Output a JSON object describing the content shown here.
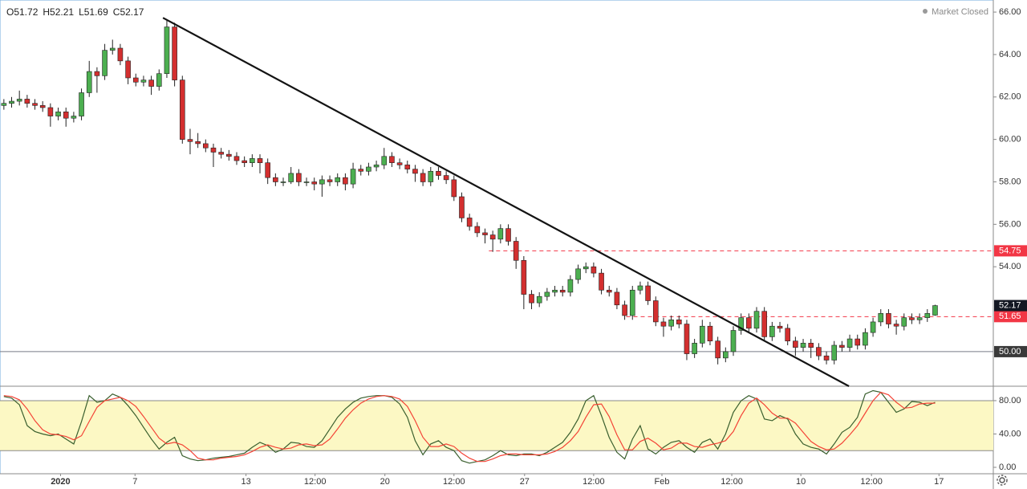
{
  "header": {
    "ohlc": [
      "O51.72",
      "H52.21",
      "L51.69",
      "C52.17"
    ],
    "status": "Market Closed"
  },
  "chart_data": {
    "type": "candlestick",
    "xlim": [
      -0.5,
      127.5
    ],
    "xticks": [
      {
        "value": 7.3,
        "label": "2020"
      },
      {
        "value": 16.9,
        "label": "7"
      },
      {
        "value": 31.2,
        "label": "13"
      },
      {
        "value": 40.1,
        "label": "12:00"
      },
      {
        "value": 49.1,
        "label": "20"
      },
      {
        "value": 58,
        "label": "12:00"
      },
      {
        "value": 67.1,
        "label": "27"
      },
      {
        "value": 76,
        "label": "12:00"
      },
      {
        "value": 84.8,
        "label": "Feb"
      },
      {
        "value": 93.8,
        "label": "12:00"
      },
      {
        "value": 102.7,
        "label": "10"
      },
      {
        "value": 111.8,
        "label": "12:00"
      },
      {
        "value": 120.5,
        "label": "17"
      }
    ],
    "ylim": [
      48.37,
      66.57
    ],
    "yticks": [
      {
        "value": 54,
        "label": "54.00"
      },
      {
        "value": 56,
        "label": "56.00"
      },
      {
        "value": 58,
        "label": "58.00"
      },
      {
        "value": 60,
        "label": "60.00"
      },
      {
        "value": 62,
        "label": "62.00"
      },
      {
        "value": 64,
        "label": "64.00"
      },
      {
        "value": 66,
        "label": "66.00"
      }
    ],
    "up_color": "#4caf50",
    "down_color": "#d32f2f",
    "open": [
      61.6,
      61.7,
      61.8,
      61.9,
      61.7,
      61.6,
      61.5,
      61.1,
      61.3,
      61.0,
      61.1,
      62.2,
      63.2,
      63.0,
      64.2,
      64.3,
      63.7,
      62.9,
      62.7,
      62.8,
      62.5,
      63.1,
      65.3,
      62.8,
      60.0,
      59.9,
      59.8,
      59.6,
      59.4,
      59.3,
      59.2,
      59.0,
      58.9,
      59.1,
      58.9,
      58.2,
      58.0,
      58.0,
      58.4,
      58.0,
      58.0,
      57.9,
      58.1,
      58.0,
      58.2,
      57.9,
      58.6,
      58.5,
      58.7,
      58.8,
      59.2,
      58.9,
      58.8,
      58.6,
      58.4,
      58.0,
      58.5,
      58.3,
      58.1,
      57.3,
      56.3,
      55.9,
      55.6,
      55.5,
      55.3,
      55.8,
      55.2,
      54.3,
      52.7,
      52.3,
      52.6,
      52.8,
      52.9,
      52.8,
      53.4,
      53.9,
      54.0,
      53.7,
      52.9,
      52.8,
      52.2,
      51.7,
      52.9,
      53.1,
      52.4,
      51.4,
      51.2,
      51.5,
      51.3,
      49.9,
      50.4,
      51.2,
      50.5,
      49.7,
      50.0,
      51.0,
      51.6,
      51.1,
      51.9,
      50.7,
      51.2,
      51.1,
      50.5,
      50.2,
      50.4,
      50.2,
      49.8,
      49.6,
      50.3,
      50.2,
      50.6,
      50.3,
      50.9,
      51.4,
      51.8,
      51.3,
      51.2,
      51.6,
      51.5,
      51.6,
      51.72
    ],
    "high": [
      61.9,
      62.0,
      62.3,
      62.1,
      61.9,
      61.8,
      61.7,
      61.5,
      61.5,
      61.3,
      62.4,
      63.7,
      63.4,
      64.5,
      64.7,
      64.5,
      63.9,
      63.1,
      63.0,
      63.0,
      63.3,
      65.6,
      65.5,
      63.0,
      60.5,
      60.3,
      60.0,
      59.8,
      59.6,
      59.5,
      59.4,
      59.2,
      59.3,
      59.3,
      59.1,
      58.4,
      58.2,
      58.7,
      58.6,
      58.2,
      58.2,
      58.3,
      58.3,
      58.4,
      58.4,
      58.9,
      58.8,
      58.9,
      59.0,
      59.6,
      59.4,
      59.1,
      59.0,
      58.8,
      58.6,
      58.7,
      58.7,
      58.5,
      58.3,
      57.5,
      56.5,
      56.1,
      55.8,
      55.7,
      56.0,
      56.0,
      55.4,
      54.5,
      52.9,
      52.8,
      53.0,
      53.1,
      53.1,
      53.6,
      54.1,
      54.2,
      54.2,
      53.9,
      53.1,
      53.0,
      52.4,
      53.1,
      53.3,
      53.3,
      52.6,
      51.6,
      51.7,
      51.7,
      51.5,
      50.6,
      51.5,
      51.4,
      50.7,
      50.2,
      51.2,
      51.8,
      51.8,
      52.1,
      52.1,
      51.4,
      51.4,
      51.3,
      50.7,
      50.6,
      50.6,
      50.4,
      50.0,
      50.5,
      50.5,
      50.8,
      50.8,
      51.1,
      51.6,
      52.0,
      52.0,
      51.5,
      51.8,
      51.8,
      51.8,
      52.0,
      52.21
    ],
    "low": [
      61.4,
      61.5,
      61.6,
      61.5,
      61.4,
      61.3,
      60.6,
      60.9,
      60.6,
      60.8,
      60.9,
      62.0,
      62.2,
      62.8,
      64.0,
      63.5,
      62.6,
      62.5,
      62.5,
      62.1,
      62.3,
      62.9,
      62.5,
      59.8,
      59.3,
      59.6,
      59.4,
      58.7,
      59.1,
      59.0,
      58.8,
      58.7,
      58.7,
      58.4,
      57.9,
      57.8,
      57.8,
      57.9,
      57.8,
      57.8,
      57.6,
      57.3,
      57.8,
      57.8,
      57.6,
      57.7,
      58.3,
      58.3,
      58.5,
      58.6,
      58.7,
      58.6,
      58.4,
      58.0,
      57.8,
      57.8,
      58.1,
      57.9,
      57.1,
      56.1,
      55.7,
      55.4,
      55.1,
      54.7,
      55.1,
      55.0,
      53.9,
      52.0,
      52.0,
      52.1,
      52.4,
      52.6,
      52.6,
      52.6,
      53.2,
      53.7,
      53.5,
      52.7,
      52.6,
      52.0,
      51.5,
      51.5,
      52.7,
      52.2,
      51.2,
      50.7,
      51.0,
      51.1,
      49.6,
      49.7,
      50.2,
      50.3,
      49.4,
      49.5,
      49.8,
      50.8,
      50.9,
      50.9,
      50.5,
      50.5,
      50.9,
      50.3,
      49.8,
      50.0,
      49.7,
      49.6,
      49.4,
      49.4,
      50.0,
      50.0,
      50.1,
      50.1,
      50.7,
      51.2,
      51.1,
      50.8,
      51.0,
      51.3,
      51.3,
      51.4,
      51.69
    ],
    "close": [
      61.7,
      61.8,
      61.9,
      61.7,
      61.6,
      61.5,
      61.1,
      61.3,
      61.0,
      61.1,
      62.2,
      63.2,
      63.0,
      64.2,
      64.3,
      63.7,
      62.9,
      62.7,
      62.8,
      62.5,
      63.1,
      65.3,
      62.8,
      60.0,
      59.9,
      59.8,
      59.6,
      59.4,
      59.3,
      59.2,
      59.0,
      58.9,
      59.1,
      58.9,
      58.2,
      58.0,
      58.0,
      58.4,
      58.0,
      58.0,
      57.9,
      58.1,
      58.0,
      58.2,
      57.9,
      58.6,
      58.5,
      58.7,
      58.8,
      59.2,
      58.9,
      58.8,
      58.6,
      58.4,
      58.0,
      58.5,
      58.3,
      58.1,
      57.3,
      56.3,
      55.9,
      55.6,
      55.5,
      55.3,
      55.8,
      55.2,
      54.3,
      52.7,
      52.3,
      52.6,
      52.8,
      52.9,
      52.8,
      53.4,
      53.9,
      54.0,
      53.7,
      52.9,
      52.8,
      52.2,
      51.7,
      52.9,
      53.1,
      52.4,
      51.4,
      51.2,
      51.5,
      51.3,
      49.9,
      50.4,
      51.2,
      50.5,
      49.7,
      50.0,
      51.0,
      51.6,
      51.1,
      51.9,
      50.7,
      51.2,
      51.1,
      50.5,
      50.2,
      50.4,
      50.2,
      49.8,
      49.6,
      50.3,
      50.2,
      50.6,
      50.3,
      50.9,
      51.4,
      51.8,
      51.3,
      51.2,
      51.6,
      51.5,
      51.6,
      51.8,
      52.17
    ],
    "trendline": {
      "x": [
        20.5,
        108.9
      ],
      "y": [
        65.73,
        48.37
      ],
      "color": "#131313"
    },
    "levels": [
      {
        "value": 54.75,
        "label": "54.75",
        "color": "#f23645",
        "dash": true,
        "from": 62.5
      },
      {
        "value": 51.65,
        "label": "51.65",
        "color": "#f23645",
        "dash": true,
        "from": 80.2
      },
      {
        "value": 50,
        "label": "50.00",
        "color": "#787b86",
        "box": "#3a3a3a",
        "dash": false
      }
    ],
    "last_price": {
      "value": 52.17,
      "label": "52.17",
      "color": "#131722"
    },
    "stochastic": {
      "ylim": [
        -7.7,
        97.3
      ],
      "yticks": [
        {
          "value": 80,
          "label": "80.00"
        },
        {
          "value": 40,
          "label": "40.00"
        },
        {
          "value": 0,
          "label": "0.00"
        }
      ],
      "band": [
        20,
        80
      ],
      "band_color": "#fcf8c4",
      "series": [
        {
          "color": "#3a5f2e",
          "values": [
            85,
            83,
            75,
            50,
            43,
            40,
            38,
            40,
            34,
            28,
            55,
            86,
            78,
            80,
            88,
            84,
            74,
            62,
            48,
            34,
            22,
            30,
            36,
            14,
            10,
            8,
            9,
            11,
            12,
            13,
            15,
            17,
            24,
            30,
            26,
            18,
            22,
            30,
            29,
            25,
            24,
            32,
            46,
            60,
            70,
            78,
            83,
            85,
            86,
            86,
            84,
            76,
            60,
            32,
            15,
            28,
            32,
            24,
            20,
            8,
            5,
            7,
            9,
            14,
            20,
            15,
            14,
            16,
            16,
            14,
            18,
            24,
            30,
            42,
            58,
            80,
            86,
            62,
            36,
            18,
            10,
            34,
            50,
            22,
            16,
            24,
            30,
            32,
            24,
            18,
            30,
            34,
            22,
            40,
            66,
            80,
            86,
            82,
            58,
            56,
            62,
            58,
            40,
            28,
            24,
            22,
            16,
            28,
            42,
            48,
            60,
            88,
            92,
            90,
            78,
            66,
            70,
            79,
            78,
            74,
            78
          ]
        },
        {
          "color": "#f44336",
          "values": [
            86,
            85,
            81,
            70,
            56,
            45,
            40,
            39,
            37,
            33,
            38,
            55,
            72,
            80,
            82,
            84,
            80,
            73,
            61,
            48,
            35,
            28,
            30,
            27,
            20,
            11,
            9,
            9,
            11,
            12,
            13,
            15,
            19,
            24,
            27,
            24,
            22,
            23,
            27,
            28,
            26,
            27,
            34,
            46,
            59,
            69,
            77,
            82,
            85,
            86,
            85,
            82,
            73,
            56,
            36,
            25,
            25,
            28,
            25,
            17,
            11,
            7,
            7,
            10,
            14,
            16,
            16,
            15,
            15,
            15,
            16,
            19,
            24,
            32,
            43,
            60,
            75,
            76,
            61,
            39,
            21,
            21,
            31,
            35,
            29,
            21,
            23,
            29,
            29,
            25,
            24,
            27,
            29,
            32,
            43,
            62,
            77,
            83,
            75,
            65,
            59,
            59,
            53,
            42,
            31,
            25,
            21,
            22,
            29,
            39,
            50,
            65,
            80,
            90,
            87,
            78,
            71,
            72,
            76,
            77,
            77
          ]
        }
      ]
    }
  }
}
